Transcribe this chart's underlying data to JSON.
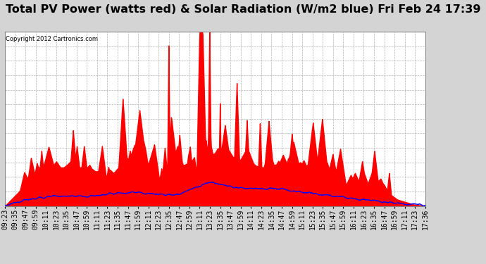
{
  "title": "Total PV Power (watts red) & Solar Radiation (W/m2 blue) Fri Feb 24 17:39",
  "copyright_text": "Copyright 2012 Cartronics.com",
  "y_max": 2717.4,
  "y_min": 0.0,
  "y_ticks": [
    0.0,
    226.4,
    452.9,
    679.3,
    905.8,
    1132.2,
    1358.7,
    1585.1,
    1811.6,
    2038.0,
    2264.5,
    2490.9,
    2717.4
  ],
  "background_color": "#d4d4d4",
  "plot_bg_color": "#ffffff",
  "grid_color": "#aaaaaa",
  "red_color": "#ff0000",
  "blue_color": "#0000ff",
  "title_fontsize": 11.5,
  "x_labels": [
    "09:23",
    "09:35",
    "09:47",
    "09:59",
    "10:11",
    "10:23",
    "10:35",
    "10:47",
    "10:59",
    "11:11",
    "11:23",
    "11:35",
    "11:47",
    "11:59",
    "12:11",
    "12:23",
    "12:35",
    "12:47",
    "12:59",
    "13:11",
    "13:23",
    "13:35",
    "13:47",
    "13:59",
    "14:11",
    "14:23",
    "14:35",
    "14:47",
    "14:59",
    "15:11",
    "15:23",
    "15:35",
    "15:47",
    "15:59",
    "16:11",
    "16:23",
    "16:35",
    "16:47",
    "16:59",
    "17:11",
    "17:23",
    "17:36"
  ],
  "tick_fontsize": 7
}
